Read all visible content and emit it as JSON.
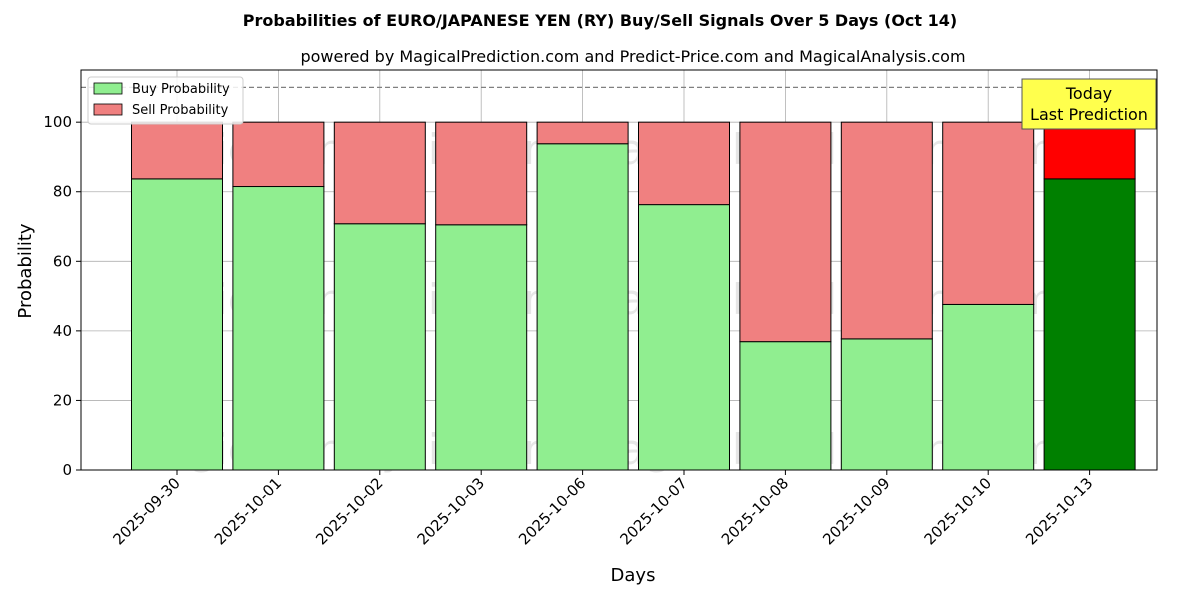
{
  "chart_data": {
    "type": "bar",
    "stacked": true,
    "title": "Probabilities of EURO/JAPANESE YEN (RY) Buy/Sell Signals Over 5 Days (Oct 14)",
    "subtitle": "powered by MagicalPrediction.com and Predict-Price.com and MagicalAnalysis.com",
    "xlabel": "Days",
    "ylabel": "Probability",
    "ylim": [
      0,
      115
    ],
    "yticks": [
      0,
      20,
      40,
      60,
      80,
      100
    ],
    "grid": true,
    "legend_position": "top-left",
    "reference_line": 110,
    "categories": [
      "2025-09-30",
      "2025-10-01",
      "2025-10-02",
      "2025-10-03",
      "2025-10-06",
      "2025-10-07",
      "2025-10-08",
      "2025-10-09",
      "2025-10-10",
      "2025-10-13"
    ],
    "series": [
      {
        "name": "Buy Probability",
        "color": "#90ee90",
        "highlight_color": "#008000",
        "values": [
          83.7,
          81.5,
          70.8,
          70.5,
          93.8,
          76.3,
          36.9,
          37.7,
          47.6,
          83.7
        ]
      },
      {
        "name": "Sell Probability",
        "color": "#f08080",
        "highlight_color": "#ff0000",
        "values": [
          16.3,
          18.5,
          29.2,
          29.5,
          6.2,
          23.7,
          63.1,
          62.3,
          52.4,
          16.3
        ]
      }
    ],
    "highlight_index": 9,
    "annotation": {
      "lines": [
        "Today",
        "Last Prediction"
      ],
      "background": "#ffff4d"
    },
    "watermarks": [
      "MagicalAnalysis.com",
      "MagicalPrediction.com",
      "MagicalAnalysis.com",
      "MagicalPrediction.com",
      "MagicalAnalysis.com",
      "MagicalPrediction.com"
    ]
  }
}
